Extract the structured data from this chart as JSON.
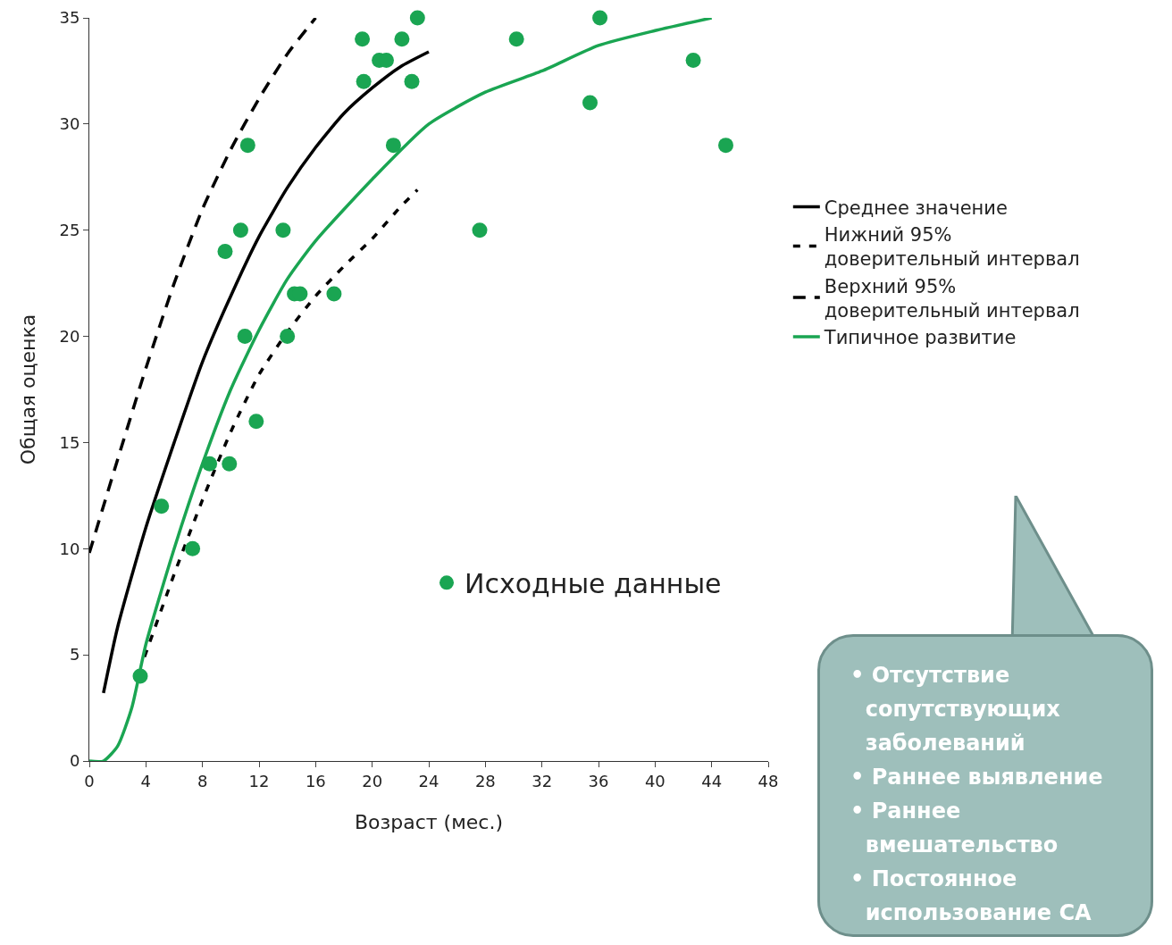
{
  "chart_data": {
    "type": "line",
    "xlabel": "Возраст (мес.)",
    "ylabel": "Общая оценка",
    "xlim": [
      0,
      48
    ],
    "xticks": [
      0,
      4,
      8,
      12,
      16,
      20,
      24,
      28,
      32,
      36,
      40,
      44,
      48
    ],
    "ylim": [
      0,
      35
    ],
    "yticks": [
      0,
      5,
      10,
      15,
      20,
      25,
      30,
      35
    ],
    "grid": false,
    "legend": "right",
    "marker": "none",
    "series": [
      {
        "name": "Среднее значение",
        "color": "#000000",
        "line_style": "solid",
        "x": [
          1,
          2,
          4,
          6,
          8,
          10,
          12,
          14,
          16,
          18,
          20,
          22,
          24
        ],
        "values": [
          3.2,
          6.3,
          11,
          15,
          18.8,
          21.9,
          24.7,
          27,
          28.9,
          30.5,
          31.7,
          32.7,
          33.4
        ]
      },
      {
        "name": "Нижний 95% доверительный интервал",
        "color": "#000000",
        "line_style": "dashed",
        "x": [
          3.9,
          6,
          8,
          10,
          12,
          14,
          16,
          18,
          20,
          22,
          23.2
        ],
        "values": [
          4.9,
          8.8,
          12.3,
          15.5,
          18.2,
          20.2,
          21.9,
          23.3,
          24.6,
          26.1,
          26.9
        ]
      },
      {
        "name": "Верхний 95% доверительный интервал",
        "color": "#000000",
        "line_style": "dashed",
        "x": [
          0,
          2,
          4,
          6,
          8,
          10,
          12,
          14,
          16
        ],
        "values": [
          9.8,
          14.2,
          18.5,
          22.5,
          26,
          28.8,
          31.2,
          33.3,
          35
        ]
      },
      {
        "name": "Типичное развитие",
        "color": "#1aa552",
        "line_style": "solid",
        "x": [
          0,
          1,
          2,
          3,
          4,
          6,
          8,
          10,
          12,
          14,
          16,
          20,
          24,
          28,
          32,
          36,
          40,
          44
        ],
        "values": [
          0,
          0,
          0.7,
          2.5,
          5.5,
          10,
          14,
          17.5,
          20.3,
          22.7,
          24.5,
          27.4,
          30,
          31.5,
          32.5,
          33.7,
          34.4,
          35
        ]
      },
      {
        "name": "Исходные данные",
        "type": "scatter",
        "marker": "circle",
        "color": "#1aa552",
        "x": [
          3.6,
          5.1,
          7.3,
          8.5,
          9.9,
          9.6,
          10.7,
          11.2,
          11,
          11.8,
          13.7,
          14,
          14.5,
          14.9,
          17.3,
          19.3,
          19.4,
          20.5,
          21,
          21.5,
          22.1,
          22.8,
          23.2,
          27.6,
          30.2,
          35.4,
          36.1,
          42.7,
          45
        ],
        "values": [
          4,
          12,
          10,
          14,
          14,
          24,
          25,
          29,
          20,
          16,
          25,
          20,
          22,
          22,
          22,
          34,
          32,
          33,
          33,
          29,
          34,
          32,
          35,
          25,
          34,
          31,
          35,
          33,
          29
        ]
      }
    ],
    "annotations": [
      "• Отсутствие\n  сопутствующих\n  заболеваний\n• Раннее выявление\n• Раннее\n  вмешательство\n• Постоянное\n  использование СА"
    ]
  }
}
